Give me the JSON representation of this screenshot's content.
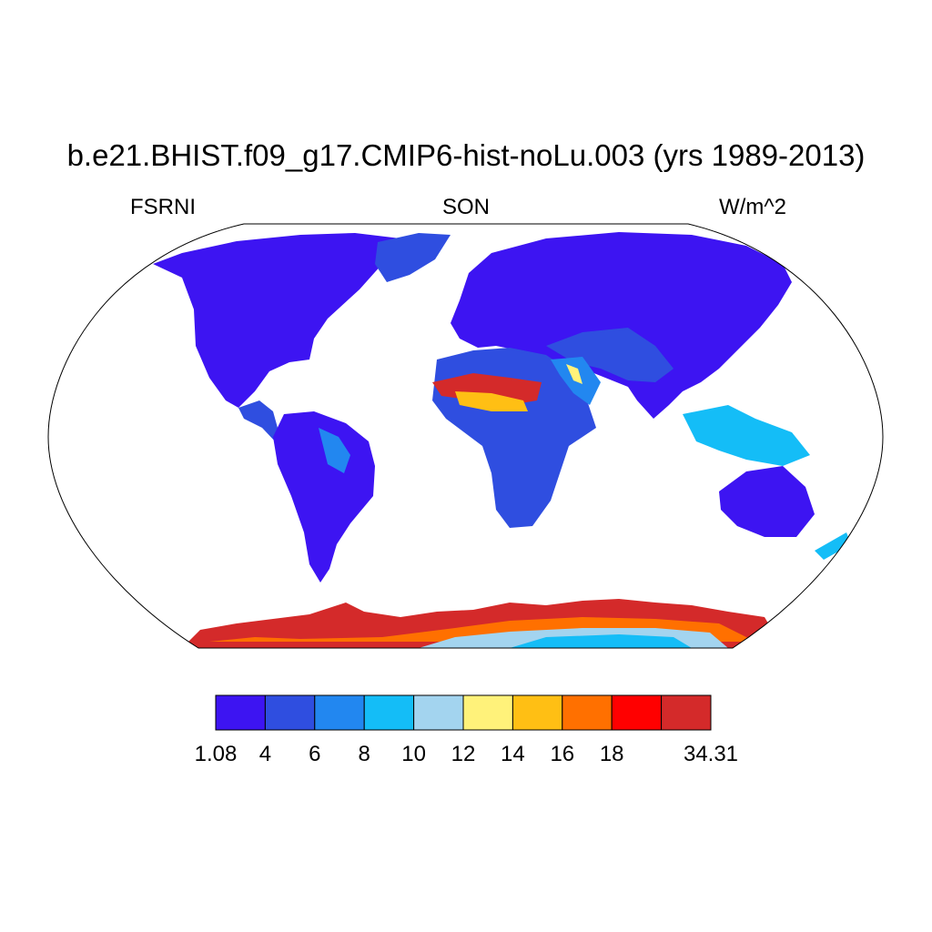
{
  "title": "b.e21.BHIST.f09_g17.CMIP6-hist-noLu.003 (yrs 1989-2013)",
  "subtitle_left": "FSRNI",
  "subtitle_center": "SON",
  "subtitle_right": "W/m^2",
  "colorbar": {
    "colors": [
      "#3d14f2",
      "#2f4ee0",
      "#2287f0",
      "#14bdf7",
      "#a3d4ef",
      "#fff27a",
      "#ffbf14",
      "#ff7000",
      "#ff0000",
      "#d42a2a"
    ],
    "labels": [
      "1.08",
      "4",
      "6",
      "8",
      "10",
      "12",
      "14",
      "16",
      "18",
      "34.31"
    ]
  }
}
